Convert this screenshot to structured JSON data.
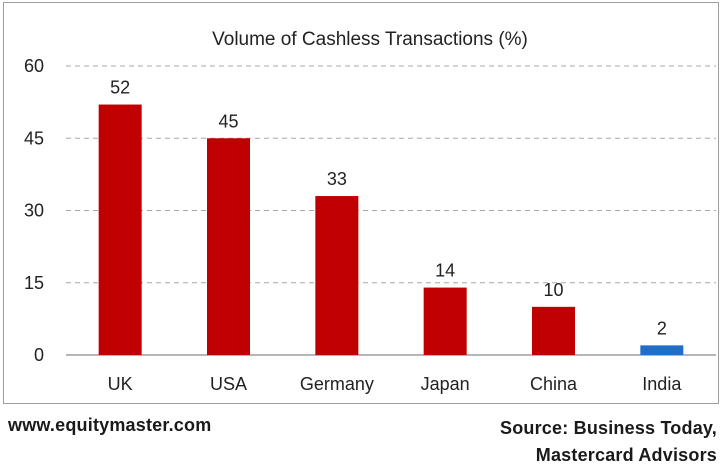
{
  "chart_data": {
    "type": "bar",
    "title": "Volume of Cashless Transactions (%)",
    "categories": [
      "UK",
      "USA",
      "Germany",
      "Japan",
      "China",
      "India"
    ],
    "values": [
      52,
      45,
      33,
      14,
      10,
      2
    ],
    "bar_colors": [
      "#c00000",
      "#c00000",
      "#c00000",
      "#c00000",
      "#c00000",
      "#1f6fc5"
    ],
    "yticks": [
      0,
      15,
      30,
      45,
      60
    ],
    "ylim": [
      0,
      60
    ],
    "grid": true,
    "grid_style": "dashed",
    "xlabel": "",
    "ylabel": ""
  },
  "footer": {
    "website": "www.equitymaster.com",
    "source_line1": "Source: Business Today,",
    "source_line2": "Mastercard Advisors"
  }
}
